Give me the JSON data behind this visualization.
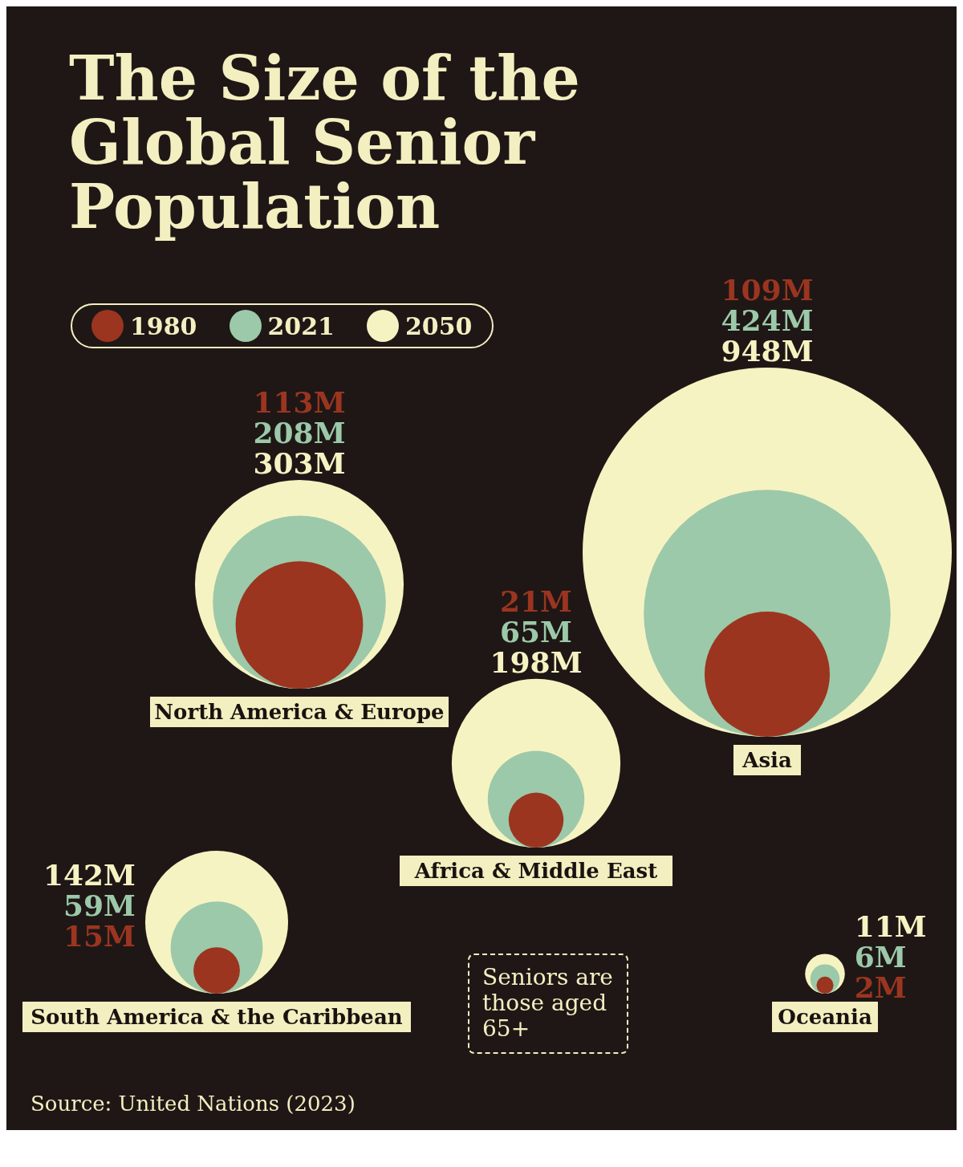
{
  "chart_data": {
    "type": "other",
    "title": "The Size of the Global Senior Population",
    "categories": [
      "North America & Europe",
      "South America & the Caribbean",
      "Africa & Middle East",
      "Asia",
      "Oceania"
    ],
    "series": [
      {
        "name": "2050",
        "color": "#f6f3c2",
        "values": [
          303,
          142,
          198,
          948,
          11
        ],
        "value_labels": [
          "303M",
          "142M",
          "198M",
          "948M",
          "11M"
        ]
      },
      {
        "name": "2021",
        "color": "#9cc9a9",
        "values": [
          208,
          59,
          65,
          424,
          6
        ],
        "value_labels": [
          "208M",
          "59M",
          "65M",
          "424M",
          "6M"
        ]
      },
      {
        "name": "1980",
        "color": "#9b3520",
        "values": [
          113,
          15,
          21,
          109,
          2
        ],
        "value_labels": [
          "113M",
          "15M",
          "21M",
          "109M",
          "2M"
        ]
      }
    ],
    "legend": "top left",
    "annotations": [
      "Seniors are those aged 65+",
      "Source: United Nations (2023)"
    ]
  }
}
